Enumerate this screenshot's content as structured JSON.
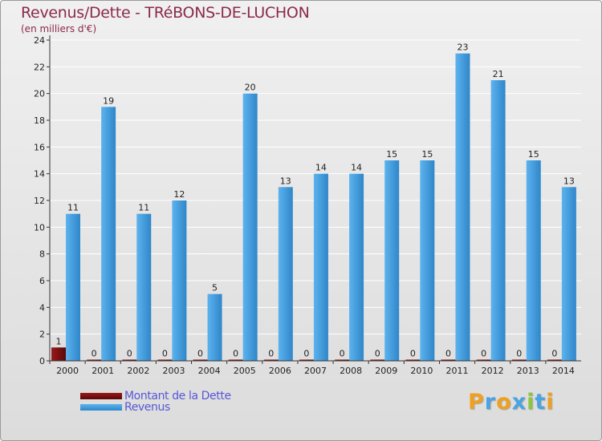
{
  "chart_data": {
    "type": "bar",
    "title": "Revenus/Dette - TRéBONS-DE-LUCHON",
    "subtitle": "(en milliers d'€)",
    "categories": [
      "2000",
      "2001",
      "2002",
      "2003",
      "2004",
      "2005",
      "2006",
      "2007",
      "2008",
      "2009",
      "2010",
      "2011",
      "2012",
      "2013",
      "2014"
    ],
    "series": [
      {
        "name": "Montant de la Dette",
        "color": "#7a0f0f",
        "values": [
          1,
          0,
          0,
          0,
          0,
          0,
          0,
          0,
          0,
          0,
          0,
          0,
          0,
          0,
          0
        ]
      },
      {
        "name": "Revenus",
        "color": "#4aa3e3",
        "values": [
          11,
          19,
          11,
          12,
          5,
          20,
          13,
          14,
          14,
          15,
          15,
          23,
          21,
          15,
          13
        ]
      }
    ],
    "ylim": [
      0,
      24
    ],
    "yticks": [
      0,
      2,
      4,
      6,
      8,
      10,
      12,
      14,
      16,
      18,
      20,
      22,
      24
    ],
    "grid": true,
    "legend": "bottom-left"
  },
  "colors": {
    "title": "#8b2a4a",
    "legend_text": "#5757d8",
    "grid": "#ffffff",
    "axis": "#333333"
  },
  "logo": {
    "text": "Proxiti",
    "letters": [
      "P",
      "r",
      "o",
      "x",
      "i",
      "t",
      "i"
    ],
    "colors": [
      "#f0a020",
      "#4aa3e3",
      "#f0a020",
      "#4aa3e3",
      "#8cc63f",
      "#4aa3e3",
      "#f0a020"
    ]
  }
}
